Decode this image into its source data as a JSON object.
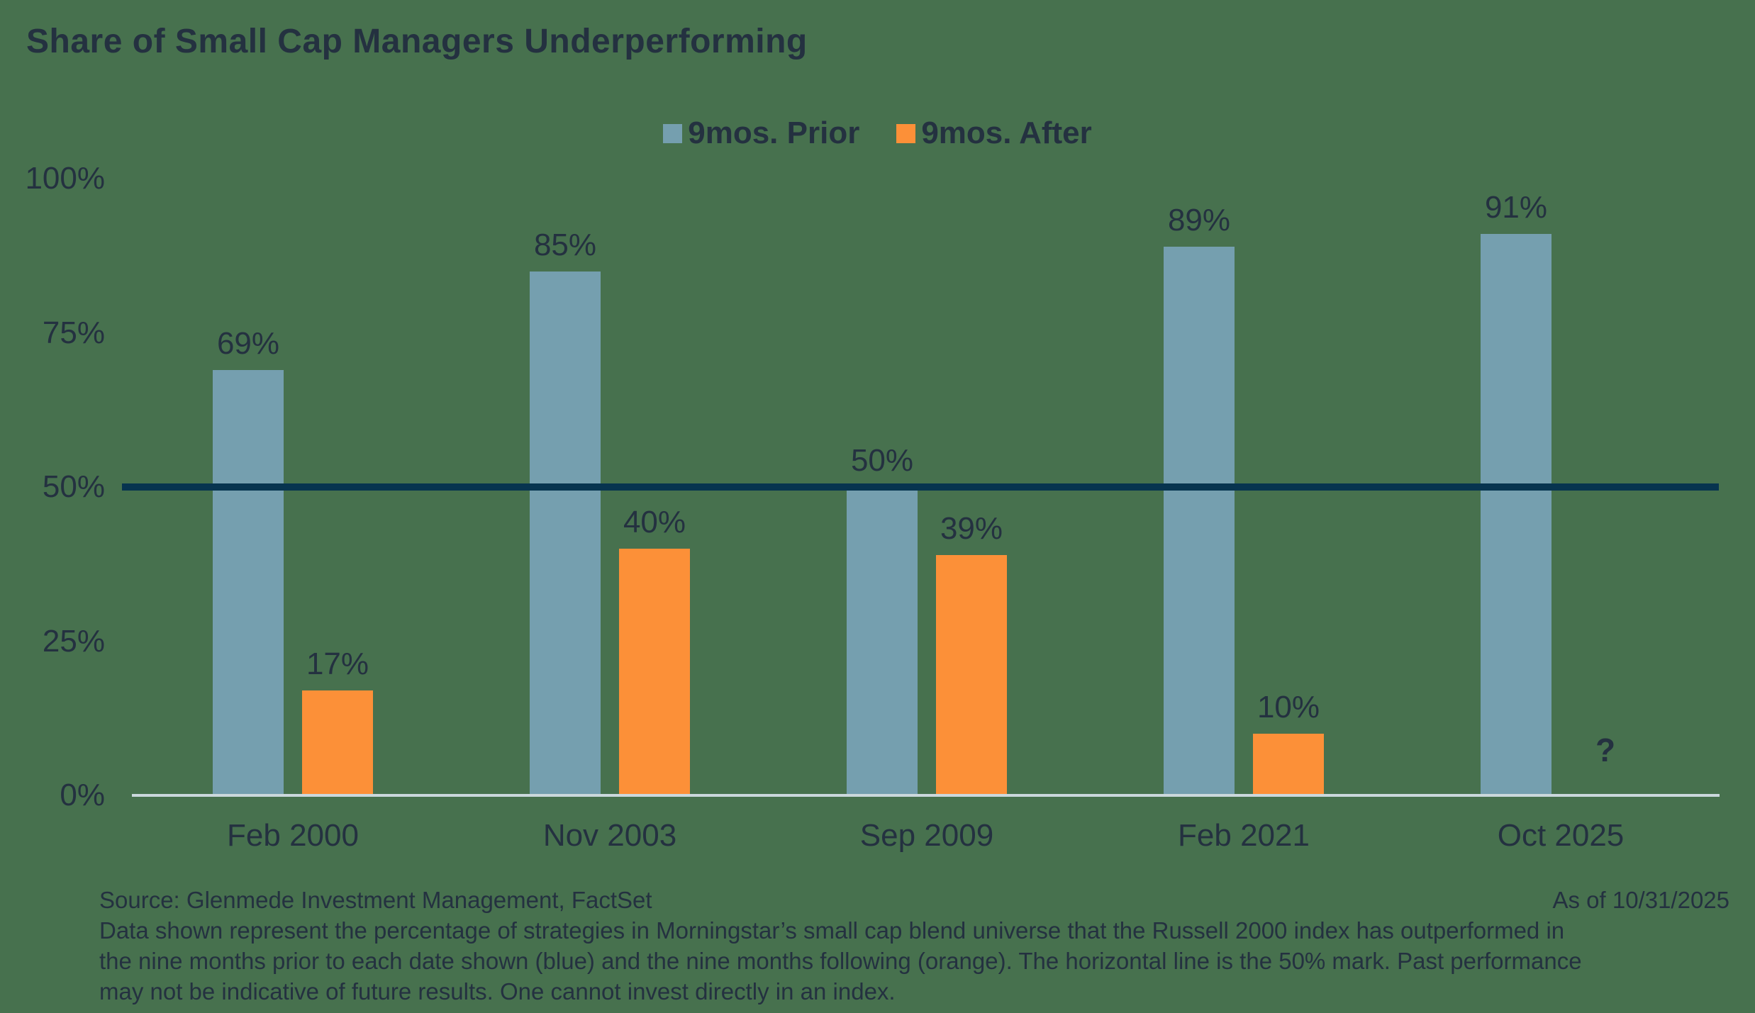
{
  "title": "Share of Small Cap Managers Underperforming",
  "legend": {
    "items": [
      {
        "label": "9mos. Prior",
        "color": "#759FAF"
      },
      {
        "label": "9mos. After",
        "color": "#FC9038"
      }
    ]
  },
  "chart_data": {
    "type": "bar",
    "title": "Share of Small Cap Managers Underperforming",
    "categories": [
      "Feb 2000",
      "Nov 2003",
      "Sep 2009",
      "Feb 2021",
      "Oct 2025"
    ],
    "series": [
      {
        "name": "9mos. Prior",
        "color": "#759FAF",
        "values": [
          69,
          85,
          50,
          89,
          91
        ],
        "labels": [
          "69%",
          "85%",
          "50%",
          "89%",
          "91%"
        ]
      },
      {
        "name": "9mos. After",
        "color": "#FC9038",
        "values": [
          17,
          40,
          39,
          10,
          null
        ],
        "labels": [
          "17%",
          "40%",
          "39%",
          "10%",
          "?"
        ]
      }
    ],
    "ylim": [
      0,
      100
    ],
    "yticks": [
      {
        "value": 0,
        "label": "0%"
      },
      {
        "value": 25,
        "label": "25%"
      },
      {
        "value": 50,
        "label": "50%"
      },
      {
        "value": 75,
        "label": "75%"
      },
      {
        "value": 100,
        "label": "100%"
      }
    ],
    "reference_line": {
      "value": 50,
      "color": "#07344F",
      "meaning": "50% mark"
    },
    "grid": false,
    "legend_position": "top-center",
    "unknown_marker": "?"
  },
  "footer": {
    "source": "Source: Glenmede Investment Management, FactSet",
    "as_of": "As of 10/31/2025",
    "disclosure_lines": [
      "Data shown represent the percentage of strategies in Morningstar’s small cap blend universe that the Russell 2000 index has outperformed in",
      "the nine months prior to each date shown (blue) and the nine months following (orange). The horizontal line is the 50% mark. Past performance",
      "may not be indicative of future results. One cannot invest directly in an index."
    ]
  },
  "colors": {
    "background": "#47714E",
    "text": "#243140",
    "axis_line": "#CBD8DC",
    "reference_line": "#07344F",
    "bar_prior": "#759FAF",
    "bar_after": "#FC9038"
  }
}
